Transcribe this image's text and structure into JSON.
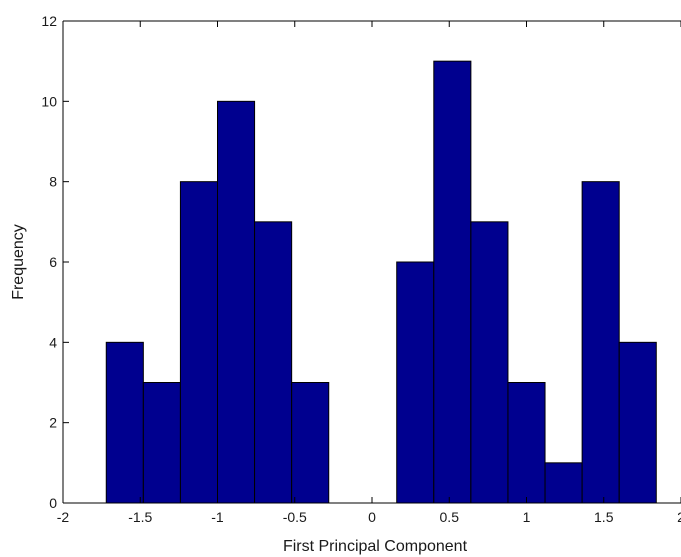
{
  "chart_data": {
    "type": "bar",
    "title": "",
    "xlabel": "First Principal Component",
    "ylabel": "Frequency",
    "xlim": [
      -2,
      2
    ],
    "ylim": [
      0,
      12
    ],
    "xticks": [
      -2,
      -1.5,
      -1,
      -0.5,
      0,
      0.5,
      1,
      1.5,
      2
    ],
    "xtick_labels": [
      "-2",
      "-1.5",
      "-1",
      "-0.5",
      "0",
      "0.5",
      "1",
      "1.5",
      "2"
    ],
    "yticks": [
      0,
      2,
      4,
      6,
      8,
      10,
      12
    ],
    "ytick_labels": [
      "0",
      "2",
      "4",
      "6",
      "8",
      "10",
      "12"
    ],
    "bin_width": 0.24,
    "bins": [
      {
        "x0": -1.72,
        "x1": -1.48,
        "value": 4
      },
      {
        "x0": -1.48,
        "x1": -1.24,
        "value": 3
      },
      {
        "x0": -1.24,
        "x1": -1.0,
        "value": 8
      },
      {
        "x0": -1.0,
        "x1": -0.76,
        "value": 10
      },
      {
        "x0": -0.76,
        "x1": -0.52,
        "value": 7
      },
      {
        "x0": -0.52,
        "x1": -0.28,
        "value": 3
      },
      {
        "x0": -0.28,
        "x1": -0.04,
        "value": 0
      },
      {
        "x0": -0.04,
        "x1": 0.16,
        "value": 0
      },
      {
        "x0": 0.16,
        "x1": 0.4,
        "value": 6
      },
      {
        "x0": 0.4,
        "x1": 0.64,
        "value": 11
      },
      {
        "x0": 0.64,
        "x1": 0.88,
        "value": 7
      },
      {
        "x0": 0.88,
        "x1": 1.12,
        "value": 3
      },
      {
        "x0": 1.12,
        "x1": 1.36,
        "value": 1
      },
      {
        "x0": 1.36,
        "x1": 1.6,
        "value": 8
      },
      {
        "x0": 1.6,
        "x1": 1.84,
        "value": 4
      }
    ],
    "colors": {
      "bar_fill": "#00008f",
      "bar_edge": "#000000",
      "axes": "#000000"
    },
    "grid": false
  }
}
